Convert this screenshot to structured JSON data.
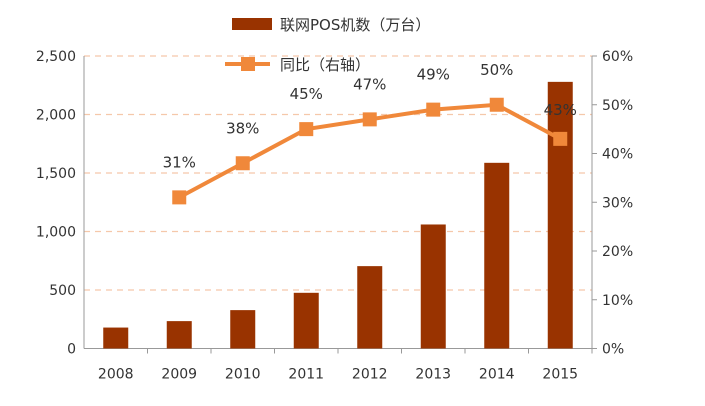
{
  "chart_data": {
    "type": "bar+line",
    "categories": [
      "2008",
      "2009",
      "2010",
      "2011",
      "2012",
      "2013",
      "2014",
      "2015"
    ],
    "series": [
      {
        "name": "联网POS机数（万台）",
        "type": "bar",
        "axis": "left",
        "color": "#993300",
        "values": [
          179,
          234,
          328,
          476,
          704,
          1060,
          1587,
          2279
        ]
      },
      {
        "name": "同比（右轴）",
        "type": "line",
        "axis": "right",
        "color": "#F0883A",
        "marker": "square",
        "values": [
          null,
          31,
          38,
          45,
          47,
          49,
          50,
          43
        ],
        "labels": [
          "",
          "31%",
          "38%",
          "45%",
          "47%",
          "49%",
          "50%",
          "43%"
        ]
      }
    ],
    "left_axis": {
      "ylim": [
        0,
        2500
      ],
      "ticks": [
        0,
        500,
        1000,
        1500,
        2000,
        2500
      ],
      "tick_labels": [
        "0",
        "500",
        "1,000",
        "1,500",
        "2,000",
        "2,500"
      ]
    },
    "right_axis": {
      "ylim": [
        0,
        60
      ],
      "ticks": [
        0,
        10,
        20,
        30,
        40,
        50,
        60
      ],
      "tick_labels": [
        "0%",
        "10%",
        "20%",
        "30%",
        "40%",
        "50%",
        "60%"
      ]
    },
    "grid": "dashed horizontal",
    "legend_placement": "top-center"
  }
}
